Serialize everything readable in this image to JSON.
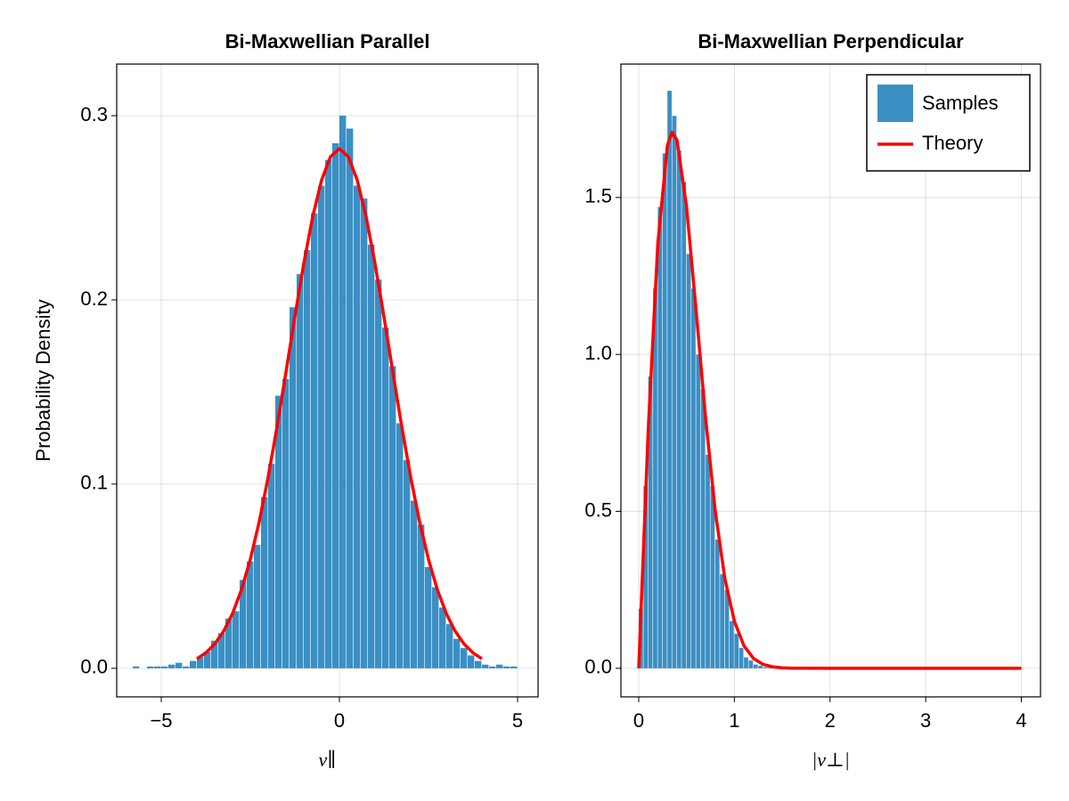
{
  "chart_data": [
    {
      "type": "histogram",
      "title": "Bi-Maxwellian Parallel",
      "xlabel": "v∥",
      "ylabel": "Probability Density",
      "xlim": [
        -6.25,
        5.575
      ],
      "ylim": [
        -0.0155,
        0.328
      ],
      "xticks": [
        {
          "value": -5,
          "label": "−5"
        },
        0,
        5
      ],
      "yticks": [
        {
          "value": 0,
          "label": "0.0"
        },
        0.1,
        0.2,
        0.3
      ],
      "grid": true,
      "histogram": {
        "color": "#3a8fc4",
        "bins": [
          -5.8,
          -5.6,
          -5.4,
          -5.2,
          -5.0,
          -4.8,
          -4.6,
          -4.4,
          -4.2,
          -4.0,
          -3.8,
          -3.6,
          -3.4,
          -3.2,
          -3.0,
          -2.8,
          -2.6,
          -2.4,
          -2.2,
          -2.0,
          -1.8,
          -1.6,
          -1.4,
          -1.2,
          -1.0,
          -0.8,
          -0.6,
          -0.4,
          -0.2,
          0.0,
          0.2,
          0.4,
          0.6,
          0.8,
          1.0,
          1.2,
          1.4,
          1.6,
          1.8,
          2.0,
          2.2,
          2.4,
          2.6,
          2.8,
          3.0,
          3.2,
          3.4,
          3.6,
          3.8,
          4.0,
          4.2,
          4.4,
          4.6,
          4.8,
          5.0
        ],
        "values": [
          0.001,
          0,
          0.001,
          0.001,
          0.001,
          0.002,
          0.003,
          0.001,
          0.004,
          0.006,
          0.009,
          0.015,
          0.019,
          0.027,
          0.031,
          0.048,
          0.058,
          0.067,
          0.093,
          0.111,
          0.148,
          0.157,
          0.196,
          0.214,
          0.227,
          0.247,
          0.262,
          0.276,
          0.285,
          0.3,
          0.293,
          0.262,
          0.255,
          0.23,
          0.211,
          0.185,
          0.164,
          0.133,
          0.113,
          0.091,
          0.078,
          0.055,
          0.044,
          0.033,
          0.024,
          0.016,
          0.011,
          0.007,
          0.004,
          0.002,
          0.001,
          0.002,
          0.001,
          0.001
        ]
      },
      "line": {
        "color": "#ff0000",
        "x": [
          -4,
          -3.75,
          -3.5,
          -3.25,
          -3,
          -2.75,
          -2.5,
          -2.25,
          -2,
          -1.75,
          -1.5,
          -1.25,
          -1,
          -0.75,
          -0.5,
          -0.25,
          0,
          0.25,
          0.5,
          0.75,
          1,
          1.25,
          1.5,
          1.75,
          2,
          2.25,
          2.5,
          2.75,
          3,
          3.25,
          3.5,
          3.75,
          4
        ],
        "values": [
          0.00517,
          0.00839,
          0.01319,
          0.02012,
          0.02973,
          0.0426,
          0.05913,
          0.07958,
          0.10378,
          0.13118,
          0.16074,
          0.1909,
          0.2197,
          0.24509,
          0.26501,
          0.27773,
          0.28209,
          0.27773,
          0.26501,
          0.24509,
          0.2197,
          0.1909,
          0.16074,
          0.13118,
          0.10378,
          0.07958,
          0.05913,
          0.0426,
          0.02973,
          0.02012,
          0.01319,
          0.00839,
          0.00517
        ]
      }
    },
    {
      "type": "histogram",
      "title": "Bi-Maxwellian Perpendicular",
      "xlabel": "|v⊥|",
      "xlim": [
        -0.186,
        4.2
      ],
      "ylim": [
        -0.091,
        1.925
      ],
      "xticks": [
        0,
        1,
        2,
        3,
        4
      ],
      "yticks": [
        {
          "value": 0,
          "label": "0.0"
        },
        0.5,
        {
          "value": 1,
          "label": "1.0"
        },
        1.5
      ],
      "grid": true,
      "legend": "top-right",
      "histogram": {
        "name": "Samples",
        "color": "#3a8fc4",
        "bins": [
          0,
          0.05,
          0.1,
          0.15,
          0.2,
          0.25,
          0.3,
          0.35,
          0.4,
          0.45,
          0.5,
          0.55,
          0.6,
          0.65,
          0.7,
          0.75,
          0.8,
          0.85,
          0.9,
          0.95,
          1.0,
          1.05,
          1.1,
          1.15,
          1.2,
          1.25,
          1.3,
          1.35,
          1.4,
          1.45,
          1.5
        ],
        "values": [
          0.19,
          0.58,
          0.93,
          1.21,
          1.47,
          1.64,
          1.84,
          1.76,
          1.65,
          1.55,
          1.32,
          1.21,
          1.0,
          0.89,
          0.68,
          0.58,
          0.41,
          0.3,
          0.25,
          0.15,
          0.11,
          0.065,
          0.035,
          0.025,
          0.012,
          0.008,
          0.004,
          0.002,
          0.001,
          0.001
        ]
      },
      "line": {
        "name": "Theory",
        "color": "#ff0000",
        "x": [
          0,
          0.1,
          0.2,
          0.3,
          0.35,
          0.4,
          0.5,
          0.6,
          0.7,
          0.8,
          0.9,
          1.0,
          1.1,
          1.2,
          1.3,
          1.4,
          1.5,
          1.6,
          2,
          3,
          4
        ],
        "values": [
          0,
          0.763,
          1.354,
          1.666,
          1.708,
          1.683,
          1.471,
          1.141,
          0.795,
          0.501,
          0.287,
          0.15,
          0.0718,
          0.0314,
          0.0126,
          0.0047,
          0.0016,
          0.0005,
          0,
          0,
          0
        ]
      }
    }
  ]
}
